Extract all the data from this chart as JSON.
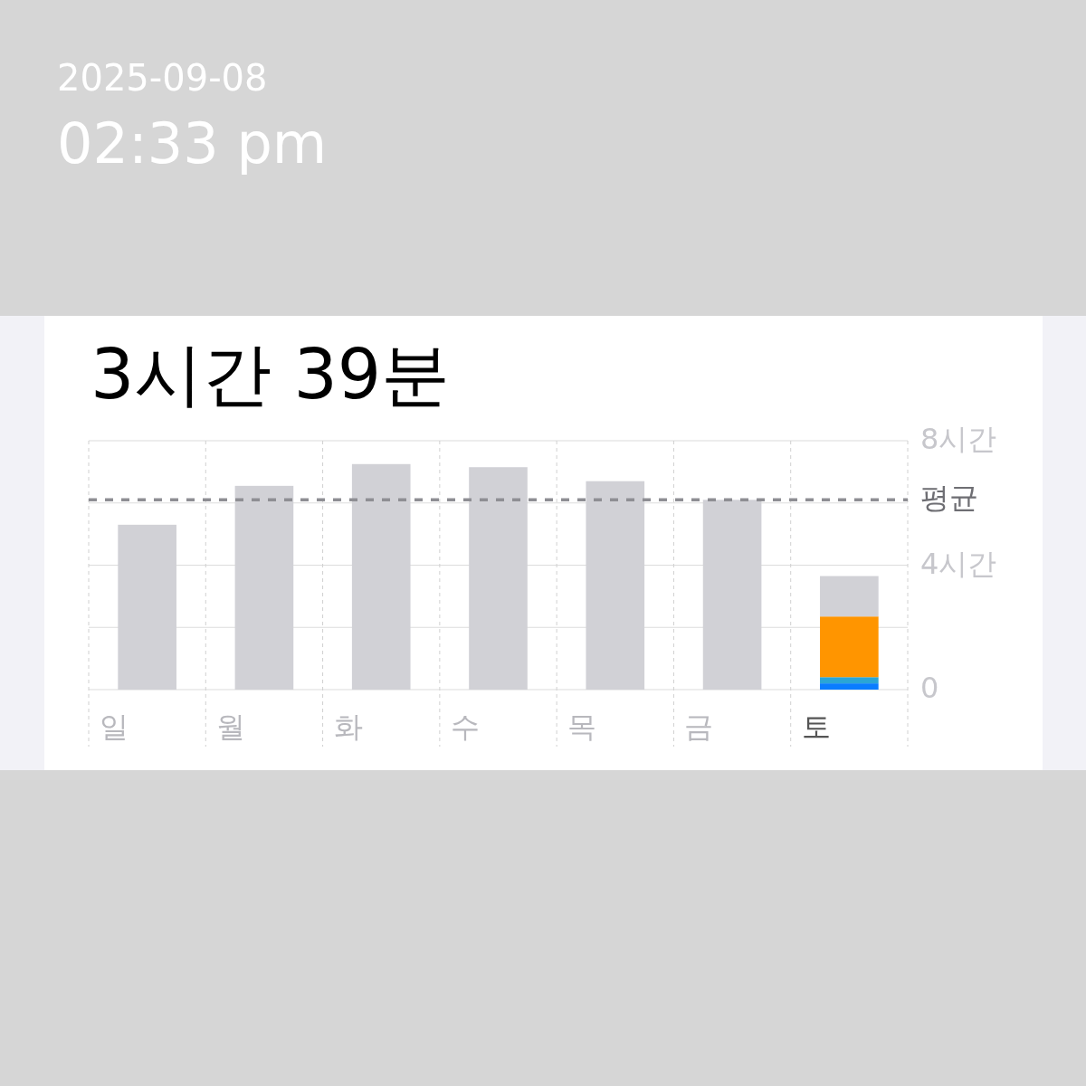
{
  "chart_data": {
    "type": "bar",
    "title": "3시간 39분",
    "annotations": [
      "2025-09-08",
      "02:33 pm"
    ],
    "categories": [
      "일",
      "월",
      "화",
      "수",
      "목",
      "금",
      "토"
    ],
    "stacked": true,
    "series": [
      {
        "color": "#0a7cff",
        "values": [
          null,
          null,
          null,
          null,
          null,
          null,
          0.2
        ]
      },
      {
        "color": "#2aa5d6",
        "values": [
          null,
          null,
          null,
          null,
          null,
          null,
          0.2
        ]
      },
      {
        "color": "#ff9500",
        "values": [
          null,
          null,
          null,
          null,
          null,
          null,
          1.95
        ]
      },
      {
        "color": "#d1d1d6",
        "values": [
          5.3,
          6.55,
          7.25,
          7.15,
          6.7,
          6.1,
          1.3
        ]
      }
    ],
    "ylim": [
      0,
      8
    ],
    "yticks": [
      0,
      {
        "value": 2,
        "label": null
      },
      {
        "value": 4,
        "label": "4시간"
      },
      {
        "value": 6,
        "label": null
      },
      {
        "value": 8,
        "label": "8시간"
      }
    ],
    "grid": true,
    "ref_lines": [
      {
        "axis": "y",
        "value": 6.1,
        "label": "평균",
        "color": "#8e8e93",
        "line_style": "dashed"
      }
    ]
  }
}
